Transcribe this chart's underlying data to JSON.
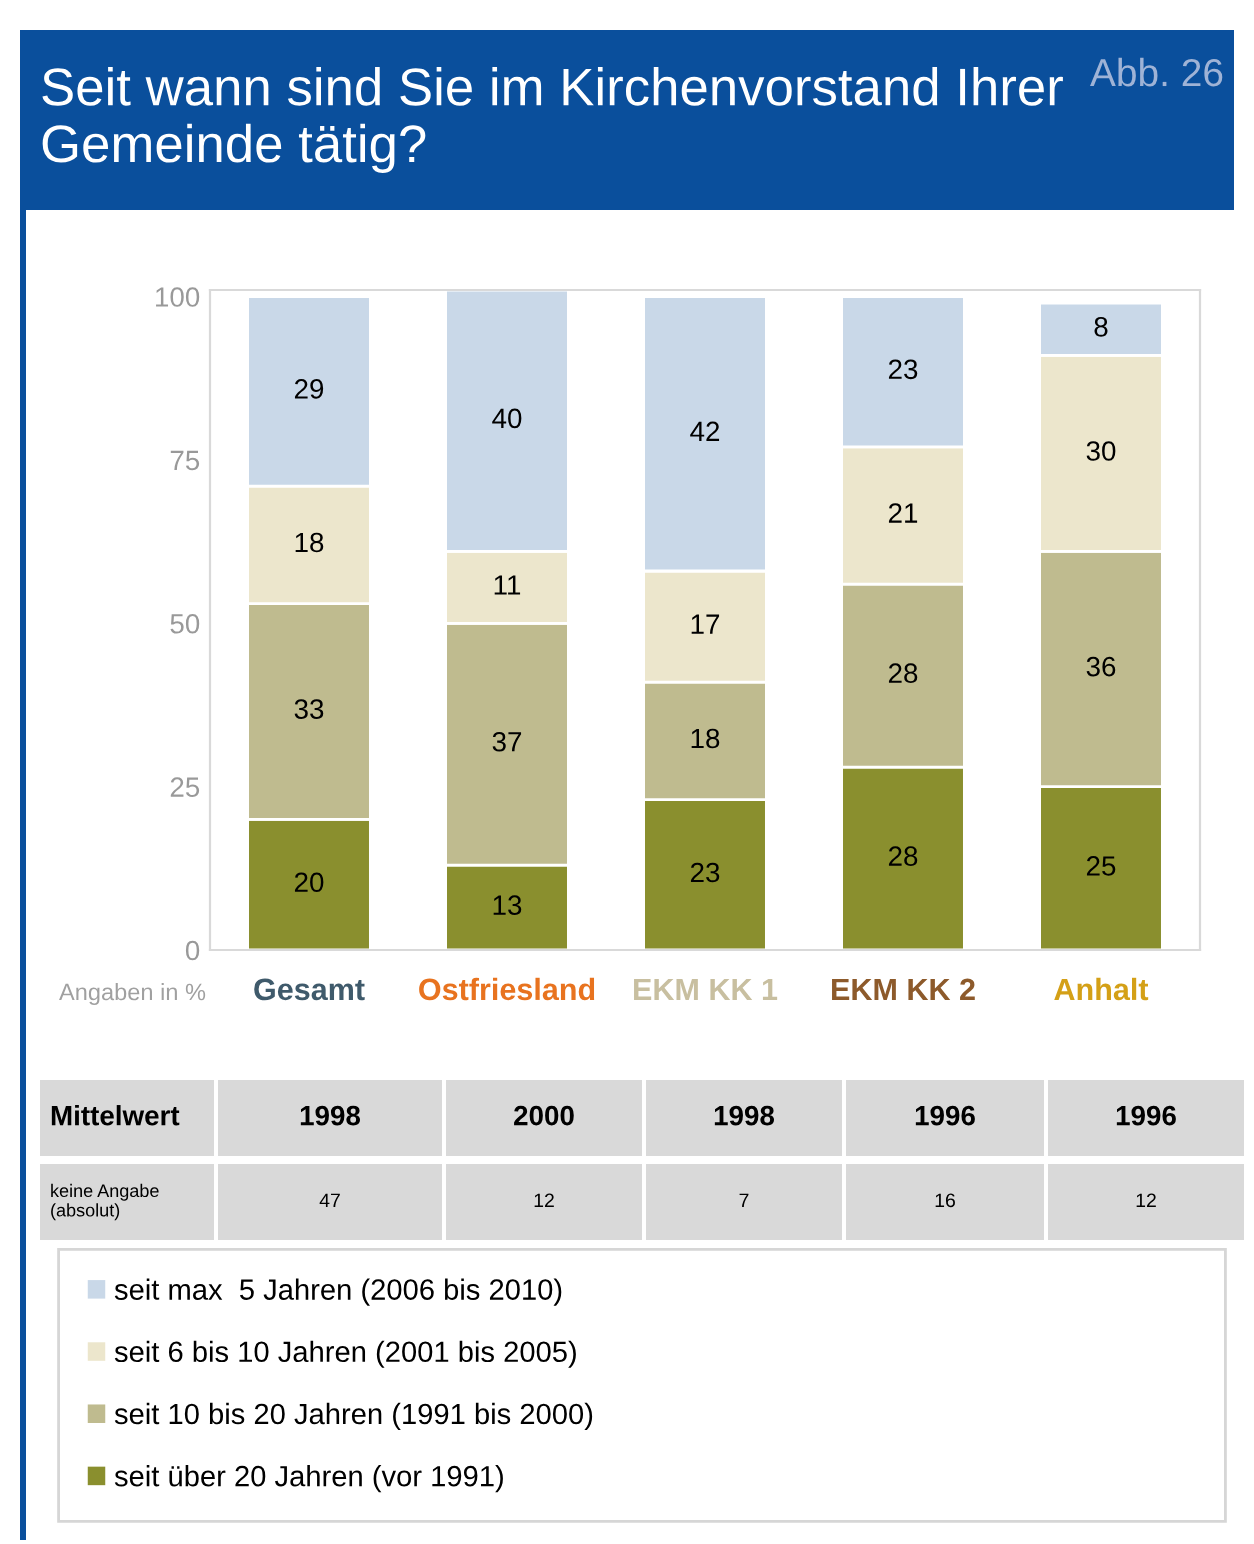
{
  "chart_data": {
    "type": "bar",
    "stacked": true,
    "title": "Seit wann sind Sie im Kirchenvorstand Ihrer Gemeinde tätig?",
    "categories": [
      "Gesamt",
      "Ostfriesland",
      "EKM KK 1",
      "EKM KK 2",
      "Anhalt"
    ],
    "series": [
      {
        "name": "seit über 20 Jahren (vor 1991)",
        "color": "#8a8f2e",
        "values": [
          20,
          13,
          23,
          28,
          25
        ]
      },
      {
        "name": "seit 10 bis 20 Jahren (1991 bis 2000)",
        "color": "#bfbb8f",
        "values": [
          33,
          37,
          18,
          28,
          36
        ]
      },
      {
        "name": "seit 6 bis 10 Jahren (2001 bis 2005)",
        "color": "#ece6cc",
        "values": [
          18,
          11,
          17,
          21,
          30
        ]
      },
      {
        "name": "seit max  5 Jahren (2006 bis 2010)",
        "color": "#c9d8e8",
        "values": [
          29,
          40,
          42,
          23,
          8
        ]
      }
    ],
    "ylim": [
      0,
      101
    ],
    "yticks": [
      0,
      25,
      50,
      75,
      100
    ],
    "data_labels": true,
    "legend": "bottom",
    "annotations": [
      "Abb. 26",
      "Angaben in %",
      "Mittelwert",
      "1998",
      "2000",
      "1998",
      "1996",
      "1996",
      "keine Angabe\n(absolut)",
      "47",
      "12",
      "7",
      "16",
      "12"
    ]
  }
}
